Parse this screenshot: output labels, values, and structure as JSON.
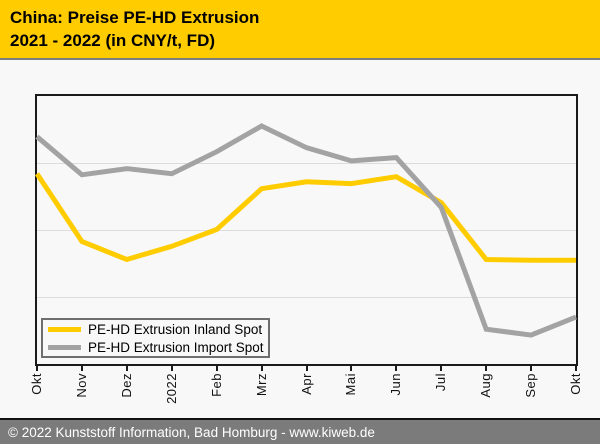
{
  "header": {
    "title_line1": "China: Preise PE-HD Extrusion",
    "title_line2": "2021 - 2022 (in CNY/t, FD)"
  },
  "legend": {
    "items": [
      {
        "label": "PE-HD Extrusion Inland Spot",
        "color": "#FFCC00"
      },
      {
        "label": "PE-HD Extrusion Import Spot",
        "color": "#A3A3A3"
      }
    ]
  },
  "footer": {
    "text": "© 2022 Kunststoff Information, Bad Homburg - www.kiweb.de"
  },
  "colors": {
    "header_bg": "#FFCC00",
    "inland_line": "#FFCC00",
    "import_line": "#A3A3A3",
    "footer_bg": "#7B7B7B",
    "page_bg": "#F8F8F8",
    "gridline": "#DCDCDC",
    "plot_border": "#1A1A1A"
  },
  "chart_data": {
    "type": "line",
    "title": "China: Preise PE-HD Extrusion 2021 - 2022 (in CNY/t, FD)",
    "xlabel": "",
    "ylabel": "",
    "categories": [
      "Okt",
      "Nov",
      "Dez",
      "2022",
      "Feb",
      "Mrz",
      "Apr",
      "Mai",
      "Jun",
      "Jul",
      "Aug",
      "Sep",
      "Okt"
    ],
    "series": [
      {
        "name": "PE-HD Extrusion Inland Spot",
        "color": "#FFCC00",
        "values": [
          71.0,
          45.7,
          39.0,
          43.9,
          50.2,
          65.4,
          68.0,
          67.3,
          69.9,
          60.2,
          39.0,
          38.7,
          38.7
        ]
      },
      {
        "name": "PE-HD Extrusion Import Spot",
        "color": "#A3A3A3",
        "values": [
          84.8,
          70.6,
          72.9,
          71.0,
          79.2,
          88.8,
          80.7,
          75.8,
          77.0,
          58.4,
          13.0,
          10.8,
          17.5
        ]
      }
    ],
    "y_axis": {
      "tick_labels_visible": false,
      "scale_note": "no numeric y labels shown in chart; values are percent of plot height (0 = bottom axis, 100 = top axis)",
      "gridlines_at_percent": [
        25,
        50,
        75
      ],
      "grid": "horizontal only"
    },
    "legend_position": "inside lower-left"
  }
}
